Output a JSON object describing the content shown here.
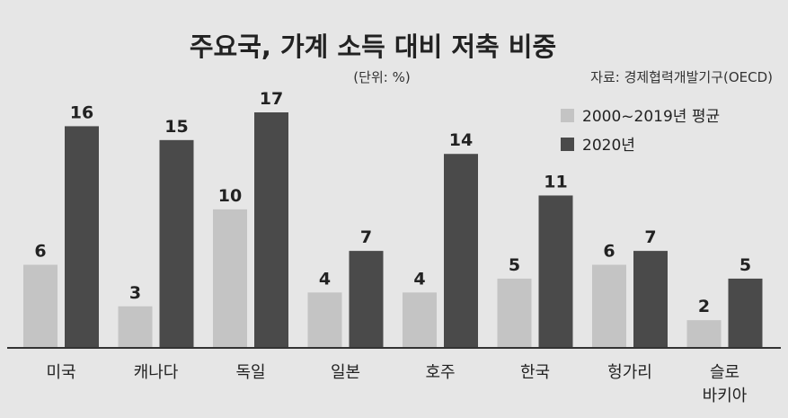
{
  "chart_data": {
    "type": "bar",
    "title": "주요국, 가계 소득 대비 저축 비중",
    "unit_note": "(단위: %)",
    "source": "자료: 경제협력개발기구(OECD)",
    "categories": [
      "미국",
      "캐나다",
      "독일",
      "일본",
      "호주",
      "한국",
      "헝가리",
      "슬로\n바키아"
    ],
    "series": [
      {
        "name": "2000~2019년 평균",
        "values": [
          6,
          3,
          10,
          4,
          4,
          5,
          6,
          2
        ],
        "color": "#c4c4c4"
      },
      {
        "name": "2020년",
        "values": [
          16,
          15,
          17,
          7,
          14,
          11,
          7,
          5
        ],
        "color": "#4a4a4a"
      }
    ],
    "ylim": [
      0,
      17
    ],
    "grid": false,
    "legend_position": "top-right",
    "background": "#e6e6e6",
    "axis_color": "#333333",
    "text_color": "#222222"
  }
}
